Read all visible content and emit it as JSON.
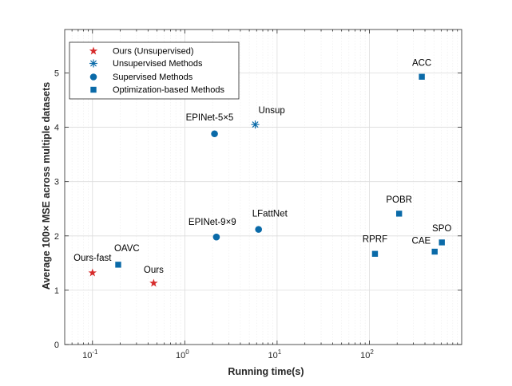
{
  "chart_data": {
    "type": "scatter",
    "xscale": "log",
    "xlabel": "Running time(s)",
    "ylabel": "Average 100× MSE across multiple datasets",
    "xlim": [
      0.05,
      1000
    ],
    "ylim": [
      0,
      5.8
    ],
    "grid": true,
    "x_ticks": [
      {
        "value": 0.1,
        "base": "10",
        "exp": "-1"
      },
      {
        "value": 1,
        "base": "10",
        "exp": "0"
      },
      {
        "value": 10,
        "base": "10",
        "exp": "1"
      },
      {
        "value": 100,
        "base": "10",
        "exp": "2"
      }
    ],
    "y_ticks": [
      {
        "value": 0,
        "label": "0"
      },
      {
        "value": 1,
        "label": "1"
      },
      {
        "value": 2,
        "label": "2"
      },
      {
        "value": 3,
        "label": "3"
      },
      {
        "value": 4,
        "label": "4"
      },
      {
        "value": 5,
        "label": "5"
      }
    ],
    "legend_position": "top-left",
    "series": [
      {
        "name": "Ours (Unsupervised)",
        "marker": "star",
        "color": "#d62a2a",
        "points": [
          {
            "label": "Ours-fast",
            "x": 0.1,
            "y": 1.32,
            "label_anchor": "middle",
            "label_dx": 0,
            "label_dy": -15
          },
          {
            "label": "Ours",
            "x": 0.46,
            "y": 1.13,
            "label_anchor": "middle",
            "label_dx": 0,
            "label_dy": -13
          }
        ]
      },
      {
        "name": "Unsupervised Methods",
        "marker": "asterisk",
        "color": "#0a6aa8",
        "points": [
          {
            "label": "Unsup",
            "x": 5.8,
            "y": 4.05,
            "label_anchor": "start",
            "label_dx": 4,
            "label_dy": -14
          }
        ]
      },
      {
        "name": "Supervised Methods",
        "marker": "circle",
        "color": "#0a6aa8",
        "points": [
          {
            "label": "EPINet-5×5",
            "x": 2.1,
            "y": 3.88,
            "label_anchor": "start",
            "label_dx": -36,
            "label_dy": -17
          },
          {
            "label": "EPINet-9×9",
            "x": 2.2,
            "y": 1.98,
            "label_anchor": "start",
            "label_dx": -35,
            "label_dy": -15
          },
          {
            "label": "LFattNet",
            "x": 6.3,
            "y": 2.12,
            "label_anchor": "start",
            "label_dx": -8,
            "label_dy": -16
          }
        ]
      },
      {
        "name": "Optimization-based Methods",
        "marker": "square",
        "color": "#0a6aa8",
        "points": [
          {
            "label": "OAVC",
            "x": 0.19,
            "y": 1.47,
            "label_anchor": "start",
            "label_dx": -5,
            "label_dy": -17
          },
          {
            "label": "ACC",
            "x": 370,
            "y": 4.93,
            "label_anchor": "middle",
            "label_dx": 0,
            "label_dy": -14
          },
          {
            "label": "POBR",
            "x": 210,
            "y": 2.41,
            "label_anchor": "middle",
            "label_dx": 0,
            "label_dy": -14
          },
          {
            "label": "RPRF",
            "x": 115,
            "y": 1.67,
            "label_anchor": "middle",
            "label_dx": 0,
            "label_dy": -15
          },
          {
            "label": "CAE",
            "x": 510,
            "y": 1.71,
            "label_anchor": "end",
            "label_dx": -5,
            "label_dy": -10
          },
          {
            "label": "SPO",
            "x": 610,
            "y": 1.88,
            "label_anchor": "middle",
            "label_dx": 0,
            "label_dy": -14
          }
        ]
      }
    ]
  }
}
